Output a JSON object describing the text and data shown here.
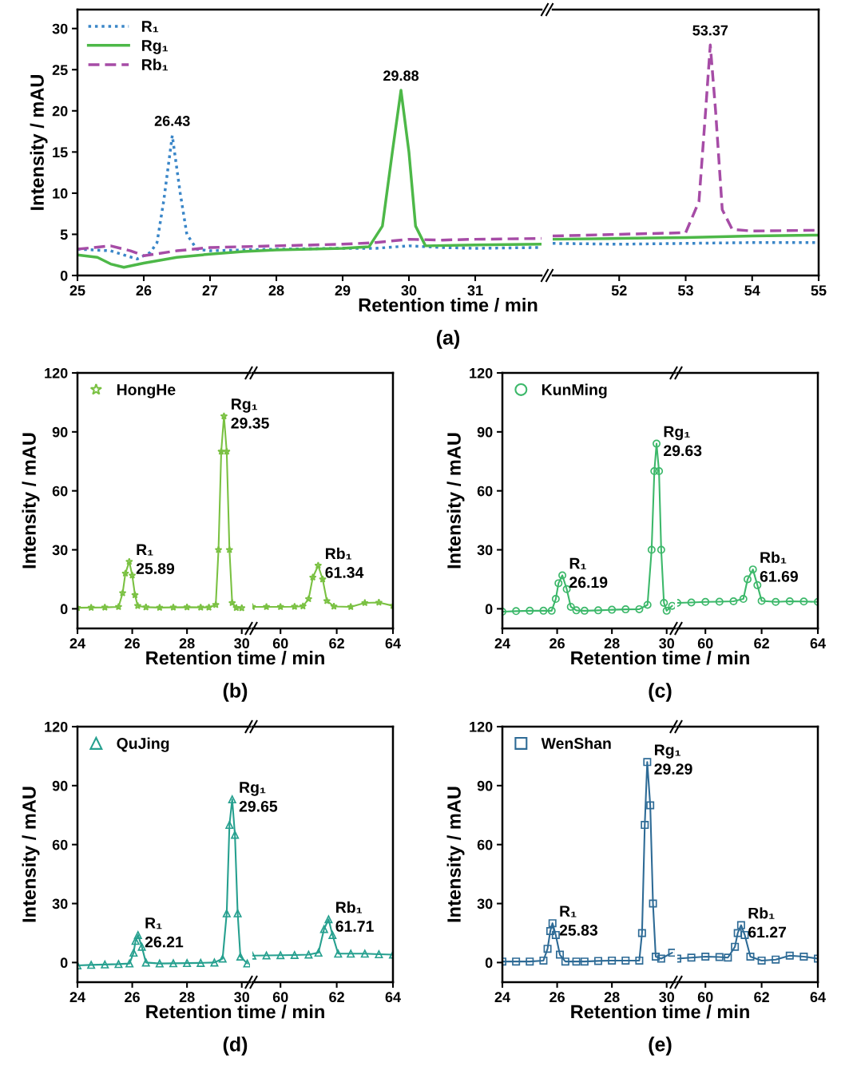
{
  "chart_data": [
    {
      "type": "line",
      "xlabel": "Retention time / min",
      "ylabel": "Intensity / mAU",
      "xlim": [
        25,
        32
      ],
      "ylim": [
        0,
        32.3
      ],
      "xticks": [
        25,
        26,
        27,
        28,
        29,
        30,
        31
      ],
      "yticks": [
        0,
        5,
        10,
        15,
        20,
        25,
        30
      ],
      "legend": "top left",
      "annotations": [
        "(a)",
        {
          "text": "26.43",
          "x": 26.43,
          "y": 17
        },
        {
          "text": "29.88",
          "x": 29.88,
          "y": 22.5
        }
      ],
      "series": [
        {
          "name": "R₁",
          "color": "#3a86c8",
          "line_style": "dotted",
          "x": [
            25,
            25.5,
            25.9,
            26.1,
            26.2,
            26.3,
            26.43,
            26.55,
            26.65,
            26.8,
            27,
            28,
            29,
            29.5,
            30,
            30.5,
            31,
            32
          ],
          "values": [
            3.2,
            3.0,
            2.0,
            2.8,
            4,
            9,
            17,
            10,
            5,
            3.2,
            3.0,
            3.2,
            3.3,
            3.3,
            3.6,
            3.4,
            3.3,
            3.4
          ]
        },
        {
          "name": "Rg₁",
          "color": "#4db848",
          "line_style": "solid",
          "x": [
            25,
            25.3,
            25.5,
            25.7,
            26,
            26.5,
            27,
            27.5,
            28,
            29,
            29.4,
            29.6,
            29.75,
            29.88,
            30,
            30.1,
            30.25,
            31,
            32
          ],
          "values": [
            2.5,
            2.2,
            1.4,
            1.0,
            1.5,
            2.2,
            2.6,
            2.9,
            3.1,
            3.3,
            3.5,
            6,
            15,
            22.5,
            15,
            6,
            3.6,
            3.7,
            3.8
          ]
        },
        {
          "name": "Rb₁",
          "color": "#a64ca6",
          "line_style": "dashed",
          "x": [
            25,
            25.5,
            25.8,
            26,
            26.5,
            27,
            28,
            29,
            29.5,
            30,
            30.5,
            31,
            32
          ],
          "values": [
            3.2,
            3.6,
            3.0,
            2.4,
            3.0,
            3.4,
            3.6,
            3.8,
            4.0,
            4.4,
            4.3,
            4.4,
            4.5
          ]
        }
      ]
    },
    {
      "type": "line",
      "xlim": [
        51,
        55
      ],
      "ylim": [
        0,
        32.3
      ],
      "xticks": [
        52,
        53,
        54,
        55
      ],
      "yticks": [
        0,
        5,
        10,
        15,
        20,
        25,
        30
      ],
      "tick_labels": "x",
      "annotations": [
        {
          "text": "53.37",
          "x": 53.37,
          "y": 28
        }
      ],
      "series": [
        {
          "color": "#3a86c8",
          "line_style": "dotted",
          "x": [
            51,
            52,
            53,
            54,
            55
          ],
          "values": [
            3.9,
            3.8,
            3.9,
            4.0,
            4.0
          ]
        },
        {
          "color": "#4db848",
          "line_style": "solid",
          "x": [
            51,
            52,
            53,
            54,
            55
          ],
          "values": [
            4.4,
            4.5,
            4.6,
            4.8,
            4.9
          ]
        },
        {
          "color": "#a64ca6",
          "line_style": "dashed",
          "x": [
            51,
            52,
            53,
            53.2,
            53.3,
            53.37,
            53.45,
            53.55,
            53.7,
            54,
            55
          ],
          "values": [
            4.8,
            5.0,
            5.2,
            9,
            20,
            28,
            20,
            8,
            5.6,
            5.4,
            5.5
          ]
        }
      ]
    },
    {
      "type": "line",
      "xlabel": "Retention time / min",
      "ylabel": "Intensity / mAU",
      "xlim": [
        24,
        30.3
      ],
      "ylim": [
        -10,
        120
      ],
      "xticks": [
        24,
        26,
        28,
        30
      ],
      "yticks": [
        0,
        30,
        60,
        90,
        120
      ],
      "legend": "top left",
      "marker": "star",
      "annotations": [
        "(b)",
        {
          "text": "R₁\n25.89",
          "x": 25.89,
          "y": 24
        },
        {
          "text": "Rg₁\n29.35",
          "x": 29.35,
          "y": 98
        }
      ],
      "series": [
        {
          "name": "HongHe",
          "color": "#7ac142",
          "x": [
            24,
            24.5,
            25,
            25.5,
            25.65,
            25.75,
            25.89,
            26.0,
            26.1,
            26.2,
            26.5,
            27,
            27.5,
            28,
            28.5,
            28.8,
            29.05,
            29.15,
            29.25,
            29.35,
            29.45,
            29.55,
            29.65,
            29.8,
            30
          ],
          "values": [
            0.5,
            0.6,
            0.7,
            1,
            8,
            18,
            24,
            17,
            7,
            1.5,
            0.8,
            0.6,
            0.7,
            0.8,
            0.7,
            0.7,
            2,
            30,
            80,
            98,
            80,
            30,
            3,
            0.5,
            0.4
          ]
        }
      ]
    },
    {
      "type": "line",
      "xlim": [
        59,
        64
      ],
      "ylim": [
        -10,
        120
      ],
      "xticks": [
        60,
        62,
        64
      ],
      "yticks": [
        0,
        30,
        60,
        90,
        120
      ],
      "tick_labels": "x",
      "marker": "star",
      "annotations": [
        {
          "text": "Rb₁\n61.34",
          "x": 61.34,
          "y": 22
        }
      ],
      "series": [
        {
          "color": "#7ac142",
          "x": [
            59,
            59.5,
            60,
            60.5,
            60.8,
            61.0,
            61.15,
            61.34,
            61.5,
            61.65,
            61.9,
            62.5,
            63,
            63.5,
            64
          ],
          "values": [
            1,
            1,
            1,
            1.1,
            1.3,
            5,
            16,
            22,
            15,
            4,
            1.2,
            1,
            3,
            3.2,
            1.5
          ]
        }
      ]
    },
    {
      "type": "line",
      "xlabel": "Retention time / min",
      "ylabel": "Intensity / mAU",
      "xlim": [
        24,
        30.3
      ],
      "ylim": [
        -10,
        120
      ],
      "xticks": [
        24,
        26,
        28,
        30
      ],
      "yticks": [
        0,
        30,
        60,
        90,
        120
      ],
      "legend": "top left",
      "marker": "circle",
      "annotations": [
        "(c)",
        {
          "text": "R₁\n26.19",
          "x": 26.19,
          "y": 17
        },
        {
          "text": "Rg₁\n29.63",
          "x": 29.63,
          "y": 84
        }
      ],
      "series": [
        {
          "name": "KunMing",
          "color": "#3cb86a",
          "x": [
            24,
            24.5,
            25,
            25.5,
            25.8,
            25.95,
            26.05,
            26.19,
            26.35,
            26.5,
            26.7,
            27,
            27.5,
            28,
            28.5,
            29,
            29.3,
            29.45,
            29.55,
            29.63,
            29.72,
            29.8,
            29.9,
            30,
            30.2
          ],
          "values": [
            -1.5,
            -1.2,
            -1,
            -1,
            -1,
            5,
            13,
            17,
            10,
            1,
            -0.8,
            -1,
            -0.8,
            -0.5,
            -0.3,
            -0.2,
            2,
            30,
            70,
            84,
            70,
            30,
            3,
            -1,
            1.5
          ]
        }
      ]
    },
    {
      "type": "line",
      "xlim": [
        59,
        64
      ],
      "ylim": [
        -10,
        120
      ],
      "xticks": [
        60,
        62,
        64
      ],
      "yticks": [
        0,
        30,
        60,
        90,
        120
      ],
      "tick_labels": "x",
      "marker": "circle",
      "annotations": [
        {
          "text": "Rb₁\n61.69",
          "x": 61.69,
          "y": 20
        }
      ],
      "series": [
        {
          "color": "#3cb86a",
          "x": [
            59,
            59.5,
            60,
            60.5,
            61,
            61.35,
            61.5,
            61.69,
            61.85,
            62,
            62.5,
            63,
            63.5,
            64
          ],
          "values": [
            3,
            3.2,
            3.5,
            3.6,
            3.8,
            5,
            15,
            20,
            12,
            4,
            3.5,
            3.8,
            3.7,
            3.5
          ]
        }
      ]
    },
    {
      "type": "line",
      "xlabel": "Retention time / min",
      "ylabel": "Intensity / mAU",
      "xlim": [
        24,
        30.3
      ],
      "ylim": [
        -10,
        120
      ],
      "xticks": [
        24,
        26,
        28,
        30
      ],
      "yticks": [
        0,
        30,
        60,
        90,
        120
      ],
      "legend": "top left",
      "marker": "triangle",
      "annotations": [
        "(d)",
        {
          "text": "R₁\n26.21",
          "x": 26.21,
          "y": 14
        },
        {
          "text": "Rg₁\n29.65",
          "x": 29.65,
          "y": 83
        }
      ],
      "series": [
        {
          "name": "QuJing",
          "color": "#26a08f",
          "x": [
            24,
            24.5,
            25,
            25.5,
            25.9,
            26.05,
            26.12,
            26.21,
            26.35,
            26.5,
            27,
            27.5,
            28,
            28.5,
            29,
            29.3,
            29.45,
            29.55,
            29.65,
            29.75,
            29.85,
            29.95,
            30.2
          ],
          "values": [
            -1.5,
            -1.2,
            -1,
            -0.8,
            -0.5,
            5,
            11,
            14,
            8,
            0,
            -0.5,
            -0.4,
            -0.3,
            -0.2,
            0,
            2,
            25,
            70,
            83,
            65,
            25,
            3,
            -0.5
          ]
        }
      ]
    },
    {
      "type": "line",
      "xlim": [
        59,
        64
      ],
      "ylim": [
        -10,
        120
      ],
      "xticks": [
        60,
        62,
        64
      ],
      "yticks": [
        0,
        30,
        60,
        90,
        120
      ],
      "tick_labels": "x",
      "marker": "triangle",
      "annotations": [
        {
          "text": "Rb₁\n61.71",
          "x": 61.71,
          "y": 22
        }
      ],
      "series": [
        {
          "color": "#26a08f",
          "x": [
            59,
            59.5,
            60,
            60.5,
            61,
            61.35,
            61.55,
            61.71,
            61.85,
            62.05,
            62.5,
            63,
            63.5,
            64
          ],
          "values": [
            3.5,
            3.6,
            3.7,
            3.8,
            4,
            5,
            17,
            22,
            14,
            4.5,
            4.5,
            4.5,
            4.2,
            4
          ]
        }
      ]
    },
    {
      "type": "line",
      "xlabel": "Retention time / min",
      "ylabel": "Intensity / mAU",
      "xlim": [
        24,
        30.3
      ],
      "ylim": [
        -10,
        120
      ],
      "xticks": [
        24,
        26,
        28,
        30
      ],
      "yticks": [
        0,
        30,
        60,
        90,
        120
      ],
      "legend": "top left",
      "marker": "square",
      "annotations": [
        "(e)",
        {
          "text": "R₁\n25.83",
          "x": 25.83,
          "y": 20
        },
        {
          "text": "Rg₁\n29.29",
          "x": 29.29,
          "y": 102
        }
      ],
      "series": [
        {
          "name": "WenShan",
          "color": "#2e6b96",
          "x": [
            24,
            24.5,
            25,
            25.5,
            25.65,
            25.75,
            25.83,
            25.95,
            26.1,
            26.3,
            26.7,
            27,
            27.5,
            28,
            28.5,
            29,
            29.1,
            29.2,
            29.29,
            29.4,
            29.5,
            29.6,
            29.8,
            30.2
          ],
          "values": [
            0.5,
            0.5,
            0.5,
            1,
            7,
            16,
            20,
            14,
            4,
            0.5,
            0.5,
            0.5,
            0.8,
            1,
            1,
            1,
            15,
            70,
            102,
            80,
            30,
            3,
            2,
            5
          ]
        }
      ]
    },
    {
      "type": "line",
      "xlim": [
        59,
        64
      ],
      "ylim": [
        -10,
        120
      ],
      "xticks": [
        60,
        62,
        64
      ],
      "yticks": [
        0,
        30,
        60,
        90,
        120
      ],
      "tick_labels": "x",
      "marker": "square",
      "annotations": [
        {
          "text": "Rb₁\n61.27",
          "x": 61.27,
          "y": 19
        }
      ],
      "series": [
        {
          "color": "#2e6b96",
          "x": [
            59,
            59.5,
            60,
            60.5,
            60.8,
            61.05,
            61.15,
            61.27,
            61.4,
            61.6,
            62,
            62.5,
            63,
            63.5,
            64
          ],
          "values": [
            2,
            2.5,
            3,
            2.8,
            2.5,
            8,
            15,
            19,
            14,
            3,
            1,
            1.5,
            3.5,
            3,
            2
          ]
        }
      ]
    }
  ]
}
